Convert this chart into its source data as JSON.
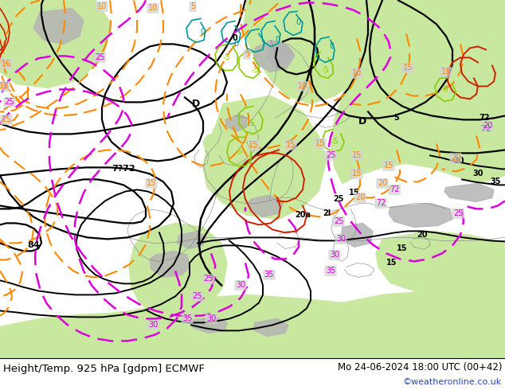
{
  "title_left": "Height/Temp. 925 hPa [gdpm] ECMWF",
  "title_right": "Mo 24-06-2024 18:00 UTC (00+42)",
  "credit": "©weatheronline.co.uk",
  "bg_gray": "#d2d2d2",
  "land_green": "#c8e8a0",
  "land_gray": "#b4b4b4",
  "c_black": "#000000",
  "c_orange": "#ff8800",
  "c_magenta": "#dd00dd",
  "c_red": "#cc2200",
  "c_green": "#44cc00",
  "c_lime": "#88cc00",
  "c_cyan": "#009999",
  "c_darkred": "#cc0000"
}
